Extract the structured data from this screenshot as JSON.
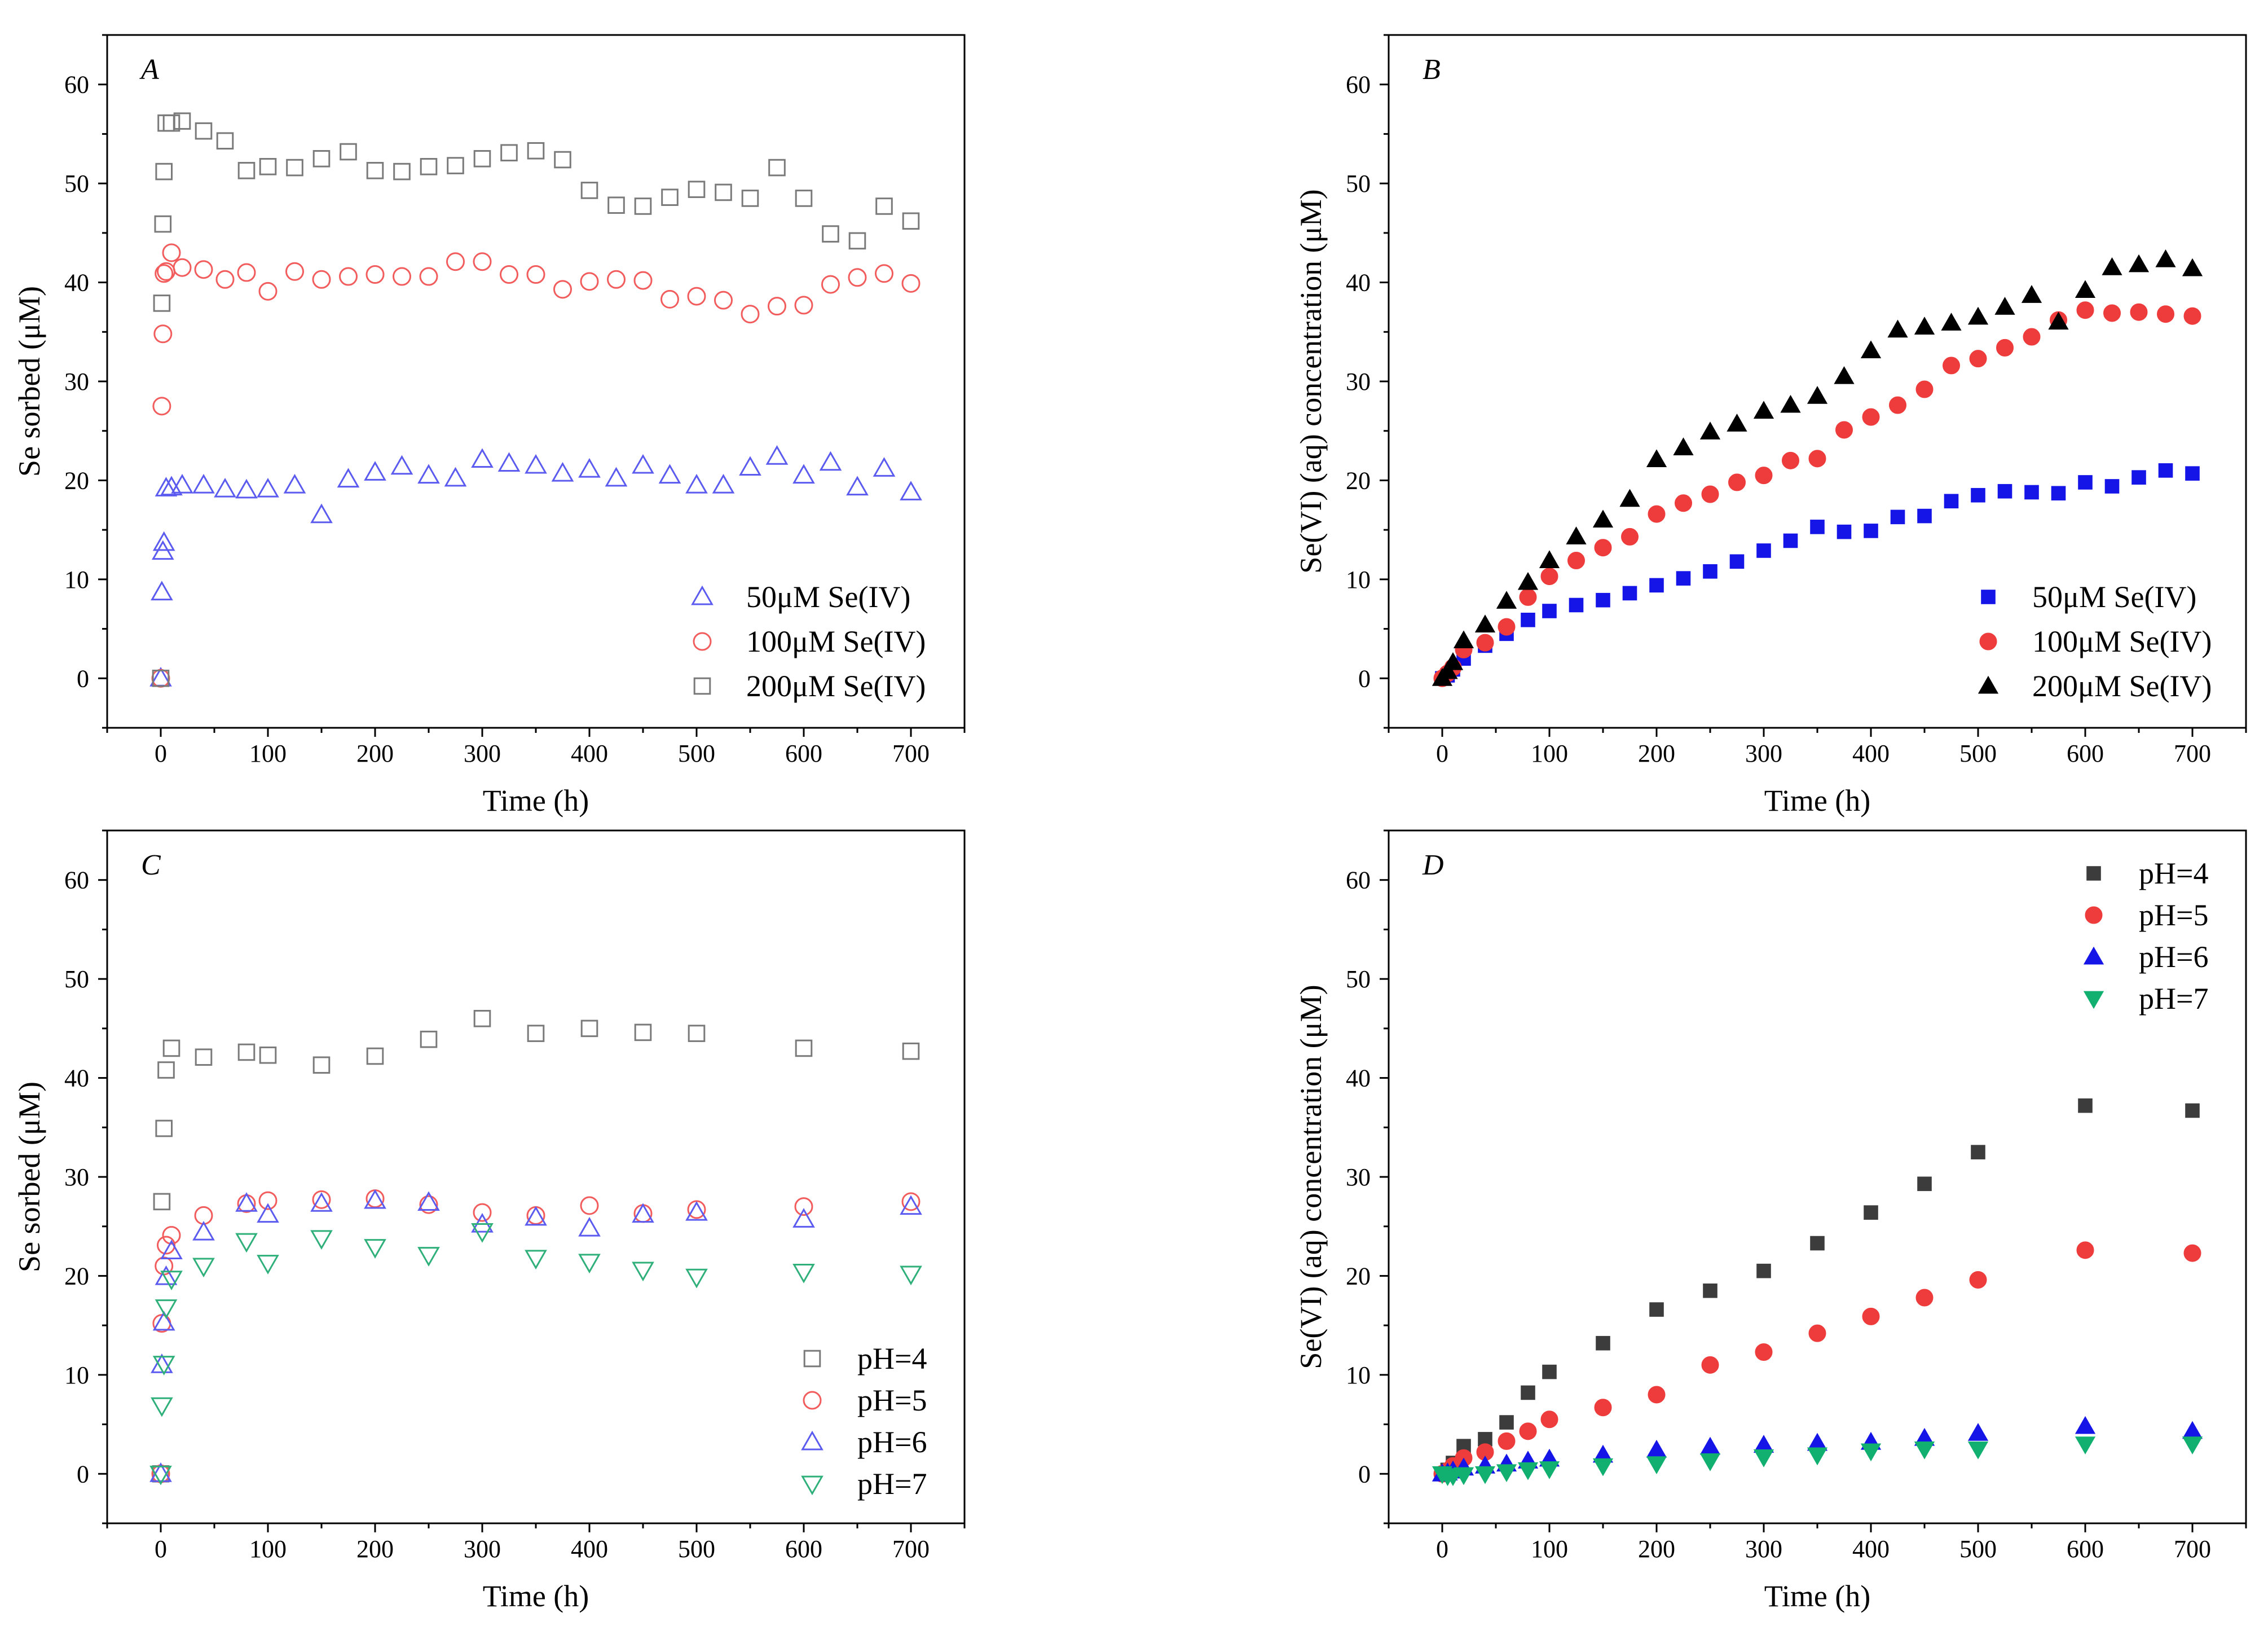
{
  "colors": {
    "blue_open": "#5b5bf0",
    "red_open": "#f25c5c",
    "gray_open": "#7a7a7a",
    "green_open": "#2fb07a",
    "blue_filled": "#1515e8",
    "red_filled": "#ee3b3b",
    "black_filled": "#000000",
    "gray_filled": "#3c3c3c",
    "green_filled": "#12b070"
  },
  "chart_data": [
    {
      "id": "A",
      "panel_label": "A",
      "type": "scatter",
      "xlabel": "Time (h)",
      "ylabel": "Se sorbed (μM)",
      "xlim": [
        -50,
        750
      ],
      "ylim": [
        -5,
        65
      ],
      "xticks": [
        0,
        100,
        200,
        300,
        400,
        500,
        600,
        700
      ],
      "yticks": [
        0,
        10,
        20,
        30,
        40,
        50,
        60
      ],
      "legend_position": "bottom-right",
      "series": [
        {
          "name": "50μM Se(IV)",
          "marker": "triangle-up",
          "filled": false,
          "color": "#5b5bf0",
          "x": [
            0,
            1,
            2,
            3,
            5,
            10,
            20,
            40,
            60,
            80,
            100,
            125,
            150,
            175,
            200,
            225,
            250,
            275,
            300,
            325,
            350,
            375,
            400,
            425,
            450,
            475,
            500,
            525,
            550,
            575,
            600,
            625,
            650,
            675,
            700
          ],
          "y": [
            0,
            8.7,
            12.8,
            13.7,
            19.2,
            19.3,
            19.5,
            19.5,
            19.1,
            19.0,
            19.1,
            19.5,
            16.5,
            20.1,
            20.8,
            21.4,
            20.5,
            20.2,
            22.1,
            21.7,
            21.5,
            20.7,
            21.1,
            20.2,
            21.5,
            20.5,
            19.5,
            19.5,
            21.3,
            22.4,
            20.5,
            21.8,
            19.3,
            21.2,
            18.8
          ]
        },
        {
          "name": "100μM Se(IV)",
          "marker": "circle",
          "filled": false,
          "color": "#f25c5c",
          "x": [
            0,
            1,
            2,
            3,
            5,
            10,
            20,
            40,
            60,
            80,
            100,
            125,
            150,
            175,
            200,
            225,
            250,
            275,
            300,
            325,
            350,
            375,
            400,
            425,
            450,
            475,
            500,
            525,
            550,
            575,
            600,
            625,
            650,
            675,
            700
          ],
          "y": [
            0,
            27.5,
            34.8,
            40.9,
            41.1,
            43.0,
            41.5,
            41.3,
            40.3,
            41.0,
            39.1,
            41.1,
            40.3,
            40.6,
            40.8,
            40.6,
            40.6,
            42.1,
            42.1,
            40.8,
            40.8,
            39.3,
            40.1,
            40.3,
            40.2,
            38.3,
            38.6,
            38.2,
            36.8,
            37.6,
            37.7,
            39.8,
            40.5,
            40.9,
            39.9
          ]
        },
        {
          "name": "200μM Se(IV)",
          "marker": "square",
          "filled": false,
          "color": "#7a7a7a",
          "x": [
            0,
            1,
            2,
            3,
            5,
            10,
            20,
            40,
            60,
            80,
            100,
            125,
            150,
            175,
            200,
            225,
            250,
            275,
            300,
            325,
            350,
            375,
            400,
            425,
            450,
            475,
            500,
            525,
            550,
            575,
            600,
            625,
            650,
            675,
            700
          ],
          "y": [
            0,
            37.9,
            45.9,
            51.2,
            56.1,
            56.1,
            56.3,
            55.3,
            54.3,
            51.3,
            51.7,
            51.6,
            52.5,
            53.2,
            51.3,
            51.2,
            51.7,
            51.8,
            52.5,
            53.1,
            53.3,
            52.4,
            49.3,
            47.8,
            47.7,
            48.6,
            49.4,
            49.1,
            48.5,
            51.6,
            48.5,
            44.9,
            44.2,
            47.7,
            46.2
          ]
        }
      ]
    },
    {
      "id": "B",
      "panel_label": "B",
      "type": "scatter",
      "xlabel": "Time (h)",
      "ylabel": "Se(VI) (aq) concentration (μM)",
      "xlim": [
        -50,
        750
      ],
      "ylim": [
        -5,
        65
      ],
      "xticks": [
        0,
        100,
        200,
        300,
        400,
        500,
        600,
        700
      ],
      "yticks": [
        0,
        10,
        20,
        30,
        40,
        50,
        60
      ],
      "legend_position": "bottom-right",
      "series": [
        {
          "name": "50μM Se(IV)",
          "marker": "square",
          "filled": true,
          "color": "#1515e8",
          "x": [
            0,
            5,
            10,
            20,
            40,
            60,
            80,
            100,
            125,
            150,
            175,
            200,
            225,
            250,
            275,
            300,
            325,
            350,
            375,
            400,
            425,
            450,
            475,
            500,
            525,
            550,
            575,
            600,
            625,
            650,
            675,
            700
          ],
          "y": [
            0,
            0.3,
            0.9,
            2.0,
            3.3,
            4.5,
            5.9,
            6.8,
            7.4,
            7.9,
            8.6,
            9.4,
            10.1,
            10.8,
            11.8,
            12.9,
            13.9,
            15.3,
            14.8,
            14.9,
            16.3,
            16.4,
            17.9,
            18.5,
            18.9,
            18.8,
            18.7,
            19.8,
            19.4,
            20.3,
            21.0,
            20.7
          ]
        },
        {
          "name": "100μM Se(IV)",
          "marker": "circle",
          "filled": true,
          "color": "#ee3b3b",
          "x": [
            0,
            5,
            10,
            20,
            40,
            60,
            80,
            100,
            125,
            150,
            175,
            200,
            225,
            250,
            275,
            300,
            325,
            350,
            375,
            400,
            425,
            450,
            475,
            500,
            525,
            550,
            575,
            600,
            625,
            650,
            675,
            700
          ],
          "y": [
            0,
            0.5,
            1.1,
            2.9,
            3.6,
            5.2,
            8.2,
            10.3,
            11.9,
            13.2,
            14.3,
            16.6,
            17.7,
            18.6,
            19.8,
            20.5,
            22.0,
            22.2,
            25.1,
            26.4,
            27.6,
            29.2,
            31.6,
            32.3,
            33.4,
            34.5,
            36.2,
            37.2,
            36.9,
            37.0,
            36.8,
            36.6
          ]
        },
        {
          "name": "200μM Se(IV)",
          "marker": "triangle-up",
          "filled": true,
          "color": "#000000",
          "x": [
            0,
            5,
            10,
            20,
            40,
            60,
            80,
            100,
            125,
            150,
            175,
            200,
            225,
            250,
            275,
            300,
            325,
            350,
            375,
            400,
            425,
            450,
            475,
            500,
            525,
            550,
            575,
            600,
            625,
            650,
            675,
            700
          ],
          "y": [
            0,
            0.7,
            1.6,
            3.8,
            5.4,
            7.8,
            9.7,
            11.9,
            14.3,
            16.0,
            18.1,
            22.1,
            23.3,
            24.9,
            25.7,
            27.0,
            27.6,
            28.5,
            30.5,
            33.1,
            35.2,
            35.5,
            35.9,
            36.5,
            37.5,
            38.7,
            36.0,
            39.2,
            41.5,
            41.8,
            42.3,
            41.4
          ]
        }
      ]
    },
    {
      "id": "C",
      "panel_label": "C",
      "type": "scatter",
      "xlabel": "Time (h)",
      "ylabel": "Se sorbed (μM)",
      "xlim": [
        -50,
        750
      ],
      "ylim": [
        -5,
        65
      ],
      "xticks": [
        0,
        100,
        200,
        300,
        400,
        500,
        600,
        700
      ],
      "yticks": [
        0,
        10,
        20,
        30,
        40,
        50,
        60
      ],
      "legend_position": "bottom-right",
      "series": [
        {
          "name": "pH=4",
          "marker": "square",
          "filled": false,
          "color": "#7a7a7a",
          "x": [
            0,
            1,
            3,
            5,
            10,
            40,
            80,
            100,
            150,
            200,
            250,
            300,
            350,
            400,
            450,
            500,
            600,
            700
          ],
          "y": [
            0,
            27.5,
            34.9,
            40.8,
            43.0,
            42.1,
            42.6,
            42.3,
            41.3,
            42.2,
            43.9,
            46.0,
            44.5,
            45.0,
            44.6,
            44.5,
            43.0,
            42.7
          ]
        },
        {
          "name": "pH=5",
          "marker": "circle",
          "filled": false,
          "color": "#f25c5c",
          "x": [
            0,
            1,
            3,
            5,
            10,
            40,
            80,
            100,
            150,
            200,
            250,
            300,
            350,
            400,
            450,
            500,
            600,
            700
          ],
          "y": [
            0,
            15.2,
            21.0,
            23.1,
            24.1,
            26.1,
            27.3,
            27.6,
            27.7,
            27.8,
            27.2,
            26.4,
            26.1,
            27.1,
            26.3,
            26.7,
            27.0,
            27.5
          ]
        },
        {
          "name": "pH=6",
          "marker": "triangle-up",
          "filled": false,
          "color": "#5b5bf0",
          "x": [
            0,
            1,
            3,
            5,
            10,
            40,
            80,
            100,
            150,
            200,
            250,
            300,
            350,
            400,
            450,
            500,
            600,
            700
          ],
          "y": [
            0,
            11.0,
            15.3,
            19.9,
            22.5,
            24.4,
            27.3,
            26.2,
            27.3,
            27.6,
            27.4,
            25.2,
            25.9,
            24.8,
            26.2,
            26.4,
            25.7,
            27.0
          ]
        },
        {
          "name": "pH=7",
          "marker": "triangle-down",
          "filled": false,
          "color": "#2fb07a",
          "x": [
            0,
            1,
            3,
            5,
            10,
            40,
            80,
            100,
            150,
            200,
            250,
            300,
            350,
            400,
            450,
            500,
            600,
            700
          ],
          "y": [
            0,
            6.9,
            11.1,
            16.8,
            19.7,
            21.0,
            23.5,
            21.3,
            23.8,
            22.9,
            22.1,
            24.5,
            21.8,
            21.4,
            20.6,
            19.9,
            20.4,
            20.2
          ]
        }
      ]
    },
    {
      "id": "D",
      "panel_label": "D",
      "type": "scatter",
      "xlabel": "Time (h)",
      "ylabel": "Se(VI) (aq) concentration (μM)",
      "xlim": [
        -50,
        750
      ],
      "ylim": [
        -5,
        65
      ],
      "xticks": [
        0,
        100,
        200,
        300,
        400,
        500,
        600,
        700
      ],
      "yticks": [
        0,
        10,
        20,
        30,
        40,
        50,
        60
      ],
      "legend_position": "top-right",
      "series": [
        {
          "name": "pH=4",
          "marker": "square",
          "filled": true,
          "color": "#3c3c3c",
          "x": [
            0,
            5,
            10,
            20,
            40,
            60,
            80,
            100,
            150,
            200,
            250,
            300,
            350,
            400,
            450,
            500,
            600,
            700
          ],
          "y": [
            0,
            0.4,
            1.1,
            2.8,
            3.5,
            5.2,
            8.2,
            10.3,
            13.2,
            16.6,
            18.5,
            20.5,
            23.3,
            26.4,
            29.3,
            32.5,
            37.2,
            36.7
          ]
        },
        {
          "name": "pH=5",
          "marker": "circle",
          "filled": true,
          "color": "#ee3b3b",
          "x": [
            0,
            5,
            10,
            20,
            40,
            60,
            80,
            100,
            150,
            200,
            250,
            300,
            350,
            400,
            450,
            500,
            600,
            700
          ],
          "y": [
            0,
            0.3,
            0.8,
            1.6,
            2.2,
            3.3,
            4.3,
            5.5,
            6.7,
            8.0,
            11.0,
            12.3,
            14.2,
            15.9,
            17.8,
            19.6,
            22.6,
            22.3
          ]
        },
        {
          "name": "pH=6",
          "marker": "triangle-up",
          "filled": true,
          "color": "#1515e8",
          "x": [
            0,
            5,
            10,
            20,
            40,
            60,
            80,
            100,
            150,
            200,
            250,
            300,
            350,
            400,
            450,
            500,
            600,
            700
          ],
          "y": [
            0,
            0.1,
            0.3,
            0.6,
            0.8,
            1.0,
            1.3,
            1.5,
            1.9,
            2.4,
            2.7,
            2.9,
            3.1,
            3.2,
            3.6,
            4.1,
            4.8,
            4.3
          ]
        },
        {
          "name": "pH=7",
          "marker": "triangle-down",
          "filled": true,
          "color": "#12b070",
          "x": [
            0,
            5,
            10,
            20,
            40,
            60,
            80,
            100,
            150,
            200,
            250,
            300,
            350,
            400,
            450,
            500,
            600,
            700
          ],
          "y": [
            0,
            -0.2,
            -0.2,
            -0.1,
            0.0,
            0.2,
            0.4,
            0.5,
            0.8,
            1.0,
            1.3,
            1.7,
            1.9,
            2.3,
            2.5,
            2.5,
            3.0,
            3.0
          ]
        }
      ]
    }
  ]
}
